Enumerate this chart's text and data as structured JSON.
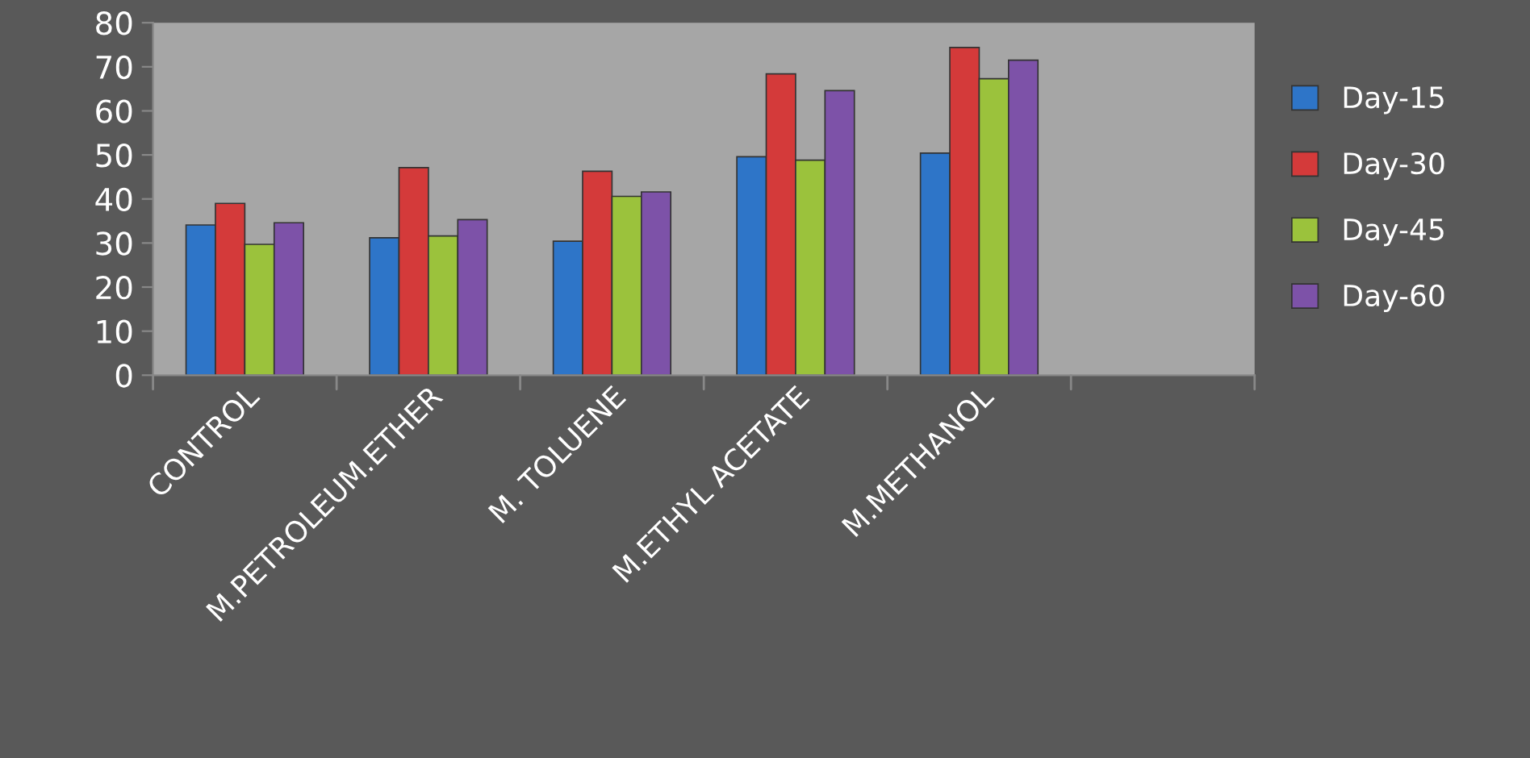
{
  "chart_data": {
    "type": "bar",
    "categories": [
      "CONTROL",
      "M.PETROLEUM.ETHER",
      "M. TOLUENE",
      "M.ETHYL ACETATE",
      "M.METHANOL",
      null
    ],
    "series": [
      {
        "name": "Day-15",
        "color": "#2e75c8",
        "values": [
          34.1,
          31.2,
          30.4,
          49.6,
          50.4,
          null
        ]
      },
      {
        "name": "Day-30",
        "color": "#d43a3a",
        "values": [
          39.0,
          47.1,
          46.3,
          68.4,
          74.4,
          null
        ]
      },
      {
        "name": "Day-45",
        "color": "#9bc23c",
        "values": [
          29.7,
          31.6,
          40.6,
          48.8,
          67.3,
          null
        ]
      },
      {
        "name": "Day-60",
        "color": "#7d52a8",
        "values": [
          34.6,
          35.3,
          41.6,
          64.6,
          71.5,
          null
        ]
      }
    ],
    "ylim": [
      0,
      80
    ],
    "yticks": [
      0,
      10,
      20,
      30,
      40,
      50,
      60,
      70,
      80
    ],
    "grid": false,
    "legend": "right"
  }
}
